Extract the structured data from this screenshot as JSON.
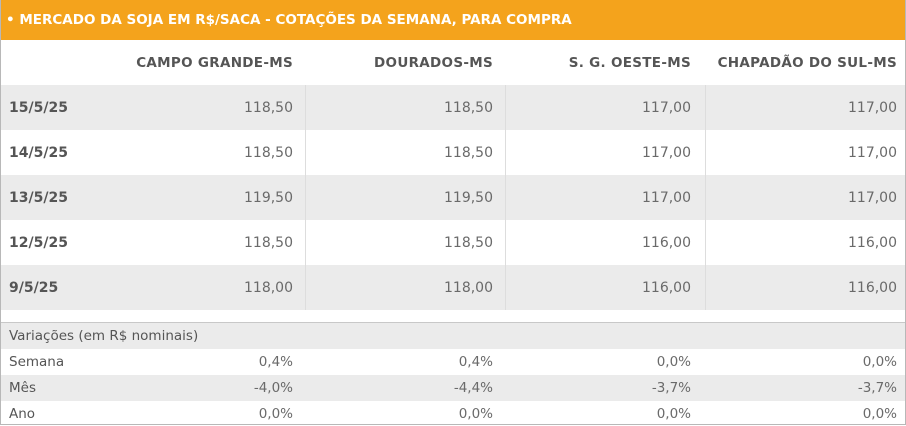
{
  "title": "• MERCADO DA SOJA EM R$/SACA - COTAÇÕES DA SEMANA, PARA COMPRA",
  "columns": [
    "CAMPO GRANDE-MS",
    "DOURADOS-MS",
    "S. G. OESTE-MS",
    "CHAPADÃO DO SUL-MS"
  ],
  "rows": [
    {
      "date": "15/5/25",
      "values": [
        "118,50",
        "118,50",
        "117,00",
        "117,00"
      ]
    },
    {
      "date": "14/5/25",
      "values": [
        "118,50",
        "118,50",
        "117,00",
        "117,00"
      ]
    },
    {
      "date": "13/5/25",
      "values": [
        "119,50",
        "119,50",
        "117,00",
        "117,00"
      ]
    },
    {
      "date": "12/5/25",
      "values": [
        "118,50",
        "118,50",
        "116,00",
        "116,00"
      ]
    },
    {
      "date": "9/5/25",
      "values": [
        "118,00",
        "118,00",
        "116,00",
        "116,00"
      ]
    }
  ],
  "variations": {
    "title": "Variações (em R$ nominais)",
    "rows": [
      {
        "label": "Semana",
        "values": [
          "0,4%",
          "0,4%",
          "0,0%",
          "0,0%"
        ]
      },
      {
        "label": "Mês",
        "values": [
          "-4,0%",
          "-4,4%",
          "-3,7%",
          "-3,7%"
        ]
      },
      {
        "label": "Ano",
        "values": [
          "0,0%",
          "0,0%",
          "0,0%",
          "0,0%"
        ]
      }
    ]
  },
  "colors": {
    "header_bg": "#f4a31c",
    "row_shade": "#ebebeb",
    "text": "#555555"
  }
}
